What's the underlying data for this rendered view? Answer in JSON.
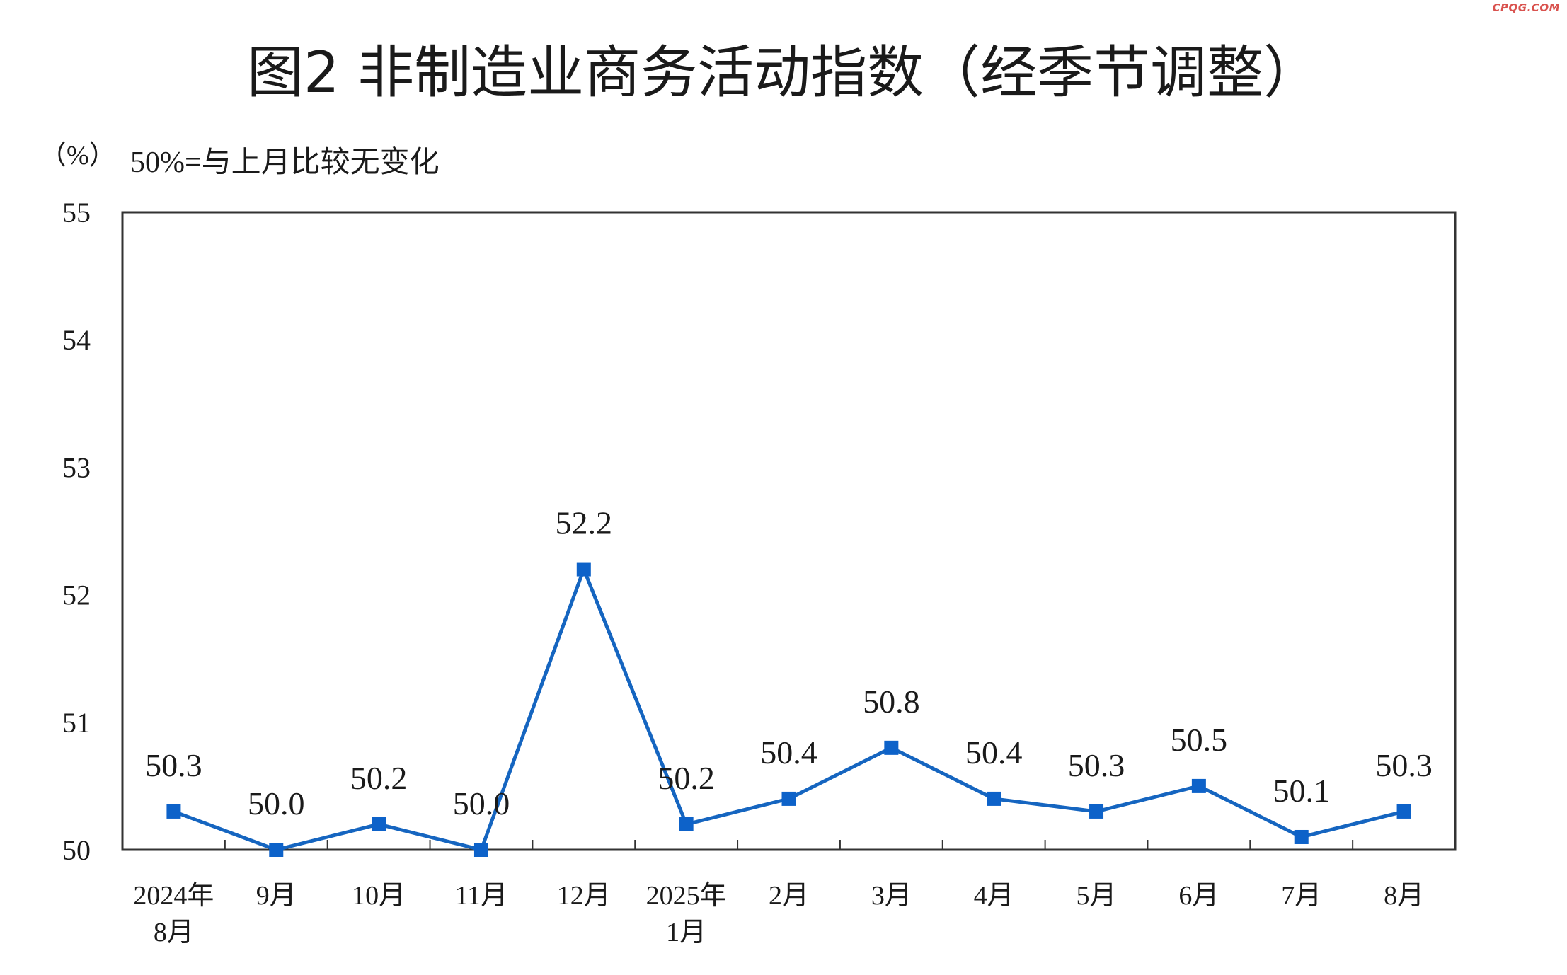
{
  "watermark": "CPQG.COM",
  "chart_data": {
    "type": "line",
    "title": "图2  非制造业商务活动指数（经季节调整）",
    "unit_label": "（%）",
    "note": "50%=与上月比较无变化",
    "categories": [
      [
        "2024年",
        "8月"
      ],
      [
        "9月"
      ],
      [
        "10月"
      ],
      [
        "11月"
      ],
      [
        "12月"
      ],
      [
        "2025年",
        "1月"
      ],
      [
        "2月"
      ],
      [
        "3月"
      ],
      [
        "4月"
      ],
      [
        "5月"
      ],
      [
        "6月"
      ],
      [
        "7月"
      ],
      [
        "8月"
      ]
    ],
    "values": [
      50.3,
      50.0,
      50.2,
      50.0,
      52.2,
      50.2,
      50.4,
      50.8,
      50.4,
      50.3,
      50.5,
      50.1,
      50.3
    ],
    "data_labels": [
      "50.3",
      "50.0",
      "50.2",
      "50.0",
      "52.2",
      "50.2",
      "50.4",
      "50.8",
      "50.4",
      "50.3",
      "50.5",
      "50.1",
      "50.3"
    ],
    "ylim": [
      50,
      55
    ],
    "yticks": [
      "50",
      "51",
      "52",
      "53",
      "54",
      "55"
    ],
    "grid": false,
    "legend": "none",
    "colors": {
      "line": "#1565c0",
      "marker": "#0d62c9",
      "axis": "#333333",
      "text": "#1a1a1a"
    }
  }
}
